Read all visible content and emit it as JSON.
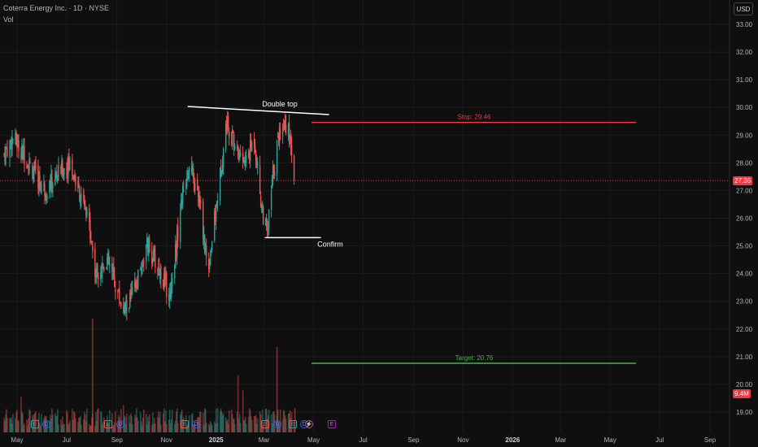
{
  "header": {
    "title": "Coterra Energy Inc. · 1D · NYSE",
    "indicator": "Vol",
    "currency_button": "USD"
  },
  "price_axis": {
    "ticks": [
      "33.00",
      "32.00",
      "31.00",
      "30.00",
      "29.00",
      "28.00",
      "27.00",
      "26.00",
      "25.00",
      "24.00",
      "23.00",
      "22.00",
      "21.00",
      "20.00",
      "19.00"
    ]
  },
  "time_axis": {
    "labels": [
      "May",
      "Jul",
      "Sep",
      "Nov",
      "2025",
      "Mar",
      "May",
      "Jul",
      "Sep",
      "Nov",
      "2026",
      "Mar",
      "May",
      "Jul",
      "Sep"
    ]
  },
  "tags": {
    "last_price": "27.36",
    "last_price_color": "#f23645",
    "volume": "9.4M",
    "volume_color": "#f23645"
  },
  "drawings": {
    "double_top": "Double top",
    "confirm": "Confirm",
    "stop": "Stop: 29.46",
    "target": "Target: 20.76",
    "stop_color": "#f23645",
    "target_color": "#4caf50",
    "neckline_color": "#ffffff"
  },
  "events": [
    {
      "type": "E",
      "color": "green",
      "icon": "earnings-icon"
    },
    {
      "type": "D",
      "color": "blue",
      "icon": "dividend-icon"
    },
    {
      "type": "E",
      "color": "red",
      "icon": "earnings-icon"
    },
    {
      "type": "D",
      "color": "blue",
      "icon": "dividend-icon"
    },
    {
      "type": "E",
      "color": "red",
      "icon": "earnings-icon"
    },
    {
      "type": "D",
      "color": "blue",
      "icon": "dividend-icon"
    },
    {
      "type": "E",
      "color": "red",
      "icon": "earnings-icon"
    },
    {
      "type": "D",
      "color": "blue",
      "icon": "dividend-icon"
    },
    {
      "type": "E",
      "color": "green",
      "icon": "earnings-icon"
    },
    {
      "type": "D",
      "color": "blue",
      "icon": "dividend-icon"
    },
    {
      "type": "⚡",
      "color": "purple",
      "icon": "bolt-icon"
    },
    {
      "type": "E",
      "color": "purple",
      "icon": "earnings-icon"
    }
  ],
  "chart_data": {
    "type": "candlestick",
    "symbol": "Coterra Energy Inc.",
    "interval": "1D",
    "exchange": "NYSE",
    "ylim": [
      18.5,
      33.5
    ],
    "x_range": [
      "2024-04-10",
      "2026-09-25"
    ],
    "last_price": 27.36,
    "annotations": {
      "double_top_line": {
        "start": [
          "2024-11-27",
          30.0
        ],
        "end": [
          "2025-05-20",
          29.8
        ]
      },
      "confirm_line": {
        "start": [
          "2025-03-02",
          25.3
        ],
        "end": [
          "2025-05-10",
          25.3
        ]
      },
      "stop": 29.46,
      "target": 20.76
    },
    "series_key_points": [
      {
        "date": "2024-04-15",
        "close": 28.3
      },
      {
        "date": "2024-04-26",
        "close": 28.9
      },
      {
        "date": "2024-05-08",
        "close": 28.4
      },
      {
        "date": "2024-05-22",
        "close": 27.6
      },
      {
        "date": "2024-06-05",
        "close": 27.0
      },
      {
        "date": "2024-06-20",
        "close": 27.6
      },
      {
        "date": "2024-07-05",
        "close": 28.0
      },
      {
        "date": "2024-07-18",
        "close": 26.8
      },
      {
        "date": "2024-07-30",
        "close": 25.6
      },
      {
        "date": "2024-08-05",
        "close": 24.0
      },
      {
        "date": "2024-08-20",
        "close": 24.5
      },
      {
        "date": "2024-09-10",
        "close": 22.6
      },
      {
        "date": "2024-09-25",
        "close": 23.6
      },
      {
        "date": "2024-10-08",
        "close": 25.0
      },
      {
        "date": "2024-10-25",
        "close": 24.0
      },
      {
        "date": "2024-11-05",
        "close": 23.2
      },
      {
        "date": "2024-11-20",
        "close": 26.7
      },
      {
        "date": "2024-11-28",
        "close": 27.9
      },
      {
        "date": "2024-12-12",
        "close": 26.5
      },
      {
        "date": "2024-12-22",
        "close": 24.1
      },
      {
        "date": "2025-01-03",
        "close": 26.8
      },
      {
        "date": "2025-01-14",
        "close": 29.5
      },
      {
        "date": "2025-01-27",
        "close": 28.4
      },
      {
        "date": "2025-02-06",
        "close": 28.0
      },
      {
        "date": "2025-02-17",
        "close": 28.9
      },
      {
        "date": "2025-02-26",
        "close": 26.4
      },
      {
        "date": "2025-03-05",
        "close": 25.4
      },
      {
        "date": "2025-03-12",
        "close": 27.6
      },
      {
        "date": "2025-03-20",
        "close": 29.2
      },
      {
        "date": "2025-03-27",
        "close": 29.5
      },
      {
        "date": "2025-04-03",
        "close": 28.8
      },
      {
        "date": "2025-04-08",
        "close": 27.36
      }
    ],
    "volume": {
      "last": "9.4M"
    }
  }
}
